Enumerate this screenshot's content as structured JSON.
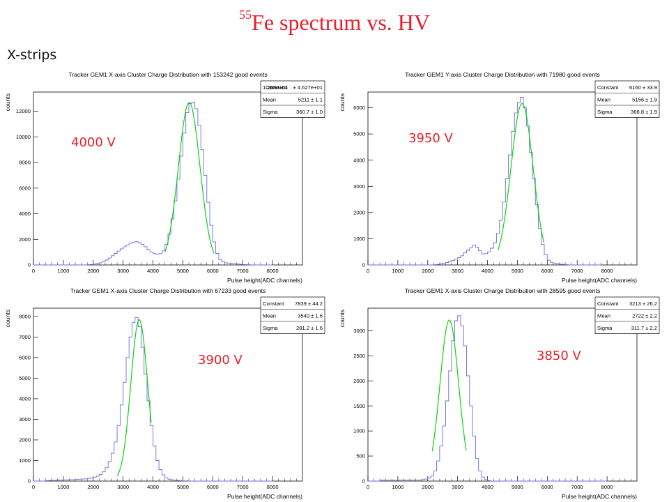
{
  "page": {
    "title_sup": "55",
    "title_main": "Fe spectrum vs. HV",
    "subtitle": "X-strips"
  },
  "colors": {
    "title": "#e8202a",
    "hv_label": "#e8202a",
    "histogram": "#6a6ae6",
    "fit": "#10d010",
    "axis": "#000000"
  },
  "chart_data": [
    {
      "type": "histogram",
      "title": "Tracker GEM1 X-axis Cluster Charge Distribution with 153242 good events",
      "xlabel": "Pulse height(ADC channels)",
      "ylabel": "counts",
      "xlim": [
        0,
        9000
      ],
      "ylim": [
        0,
        13500
      ],
      "xticks": [
        0,
        1000,
        2000,
        3000,
        4000,
        5000,
        6000,
        7000,
        8000
      ],
      "yticks": [
        0,
        2000,
        4000,
        6000,
        8000,
        10000,
        12000
      ],
      "hv_label": "4000 V",
      "stats": [
        {
          "name": "1.268e+04",
          "value": "± 4.627e+01"
        },
        {
          "name": "Mean",
          "value": "5211 ± 1.1"
        },
        {
          "name": "Sigma",
          "value": "360.7 ± 1.0"
        }
      ],
      "stats_overlay": "Constant",
      "bin_width": 100,
      "bin_start": 0,
      "counts": [
        0,
        0,
        0,
        0,
        0,
        0,
        0,
        0,
        0,
        0,
        0,
        0,
        0,
        0,
        0,
        0,
        0,
        0,
        20,
        40,
        70,
        110,
        170,
        260,
        380,
        540,
        720,
        900,
        1080,
        1250,
        1420,
        1560,
        1700,
        1780,
        1820,
        1740,
        1600,
        1420,
        1200,
        1020,
        890,
        840,
        880,
        1100,
        1600,
        2400,
        3600,
        5000,
        6700,
        8500,
        10300,
        11900,
        12600,
        12700,
        12200,
        10900,
        9000,
        7000,
        4900,
        3100,
        1800,
        900,
        420,
        240,
        170,
        130,
        110,
        90,
        70,
        50,
        30,
        20,
        10,
        0,
        0,
        0,
        0,
        0,
        0,
        0
      ],
      "fit": {
        "constant": 12680,
        "mean": 5211,
        "sigma": 360.7,
        "range": [
          4400,
          6050
        ]
      }
    },
    {
      "type": "histogram",
      "title": "Tracker GEM1 Y-axis Cluster Charge Distribution with 71980 good events",
      "xlabel": "Pulse height(ADC channels)",
      "ylabel": "counts",
      "xlim": [
        0,
        9000
      ],
      "ylim": [
        0,
        6600
      ],
      "xticks": [
        0,
        1000,
        2000,
        3000,
        4000,
        5000,
        6000,
        7000,
        8000
      ],
      "yticks": [
        0,
        1000,
        2000,
        3000,
        4000,
        5000,
        6000
      ],
      "hv_label": "3950 V",
      "stats": [
        {
          "name": "Constant",
          "value": "6160 ± 33.9"
        },
        {
          "name": "Mean",
          "value": "5156 ± 1.9"
        },
        {
          "name": "Sigma",
          "value": "368.8 ± 1.9"
        }
      ],
      "bin_width": 100,
      "bin_start": 0,
      "counts": [
        0,
        0,
        0,
        0,
        0,
        0,
        0,
        0,
        0,
        0,
        0,
        0,
        0,
        0,
        0,
        0,
        0,
        0,
        0,
        0,
        0,
        0,
        10,
        20,
        40,
        60,
        90,
        130,
        170,
        220,
        280,
        350,
        460,
        560,
        660,
        760,
        680,
        540,
        420,
        430,
        500,
        640,
        850,
        1200,
        1700,
        2400,
        3300,
        4200,
        5100,
        5800,
        6200,
        6400,
        6000,
        5300,
        4300,
        3300,
        2300,
        1400,
        780,
        400,
        180,
        100,
        60,
        40,
        30,
        20,
        10,
        0,
        0,
        0,
        0,
        0,
        0,
        0,
        0,
        0,
        0,
        0
      ],
      "fit": {
        "constant": 6160,
        "mean": 5156,
        "sigma": 368.8,
        "range": [
          4350,
          5900
        ]
      }
    },
    {
      "type": "histogram",
      "title": "Tracker GEM1 X-axis Cluster Charge Distribution with 67233 good events",
      "xlabel": "Pulse height(ADC channels)",
      "ylabel": "counts",
      "xlim": [
        0,
        9000
      ],
      "ylim": [
        0,
        8400
      ],
      "xticks": [
        0,
        1000,
        2000,
        3000,
        4000,
        5000,
        6000,
        7000,
        8000
      ],
      "yticks": [
        0,
        1000,
        2000,
        3000,
        4000,
        5000,
        6000,
        7000,
        8000
      ],
      "hv_label": "3900 V",
      "stats": [
        {
          "name": "Constant",
          "value": "7839 ± 44.2"
        },
        {
          "name": "Mean",
          "value": "3540 ± 1.6"
        },
        {
          "name": "Sigma",
          "value": "281.2 ± 1.6"
        }
      ],
      "bin_width": 100,
      "bin_start": 0,
      "counts": [
        0,
        0,
        0,
        0,
        20,
        30,
        40,
        40,
        50,
        50,
        60,
        60,
        70,
        70,
        80,
        90,
        100,
        110,
        130,
        150,
        190,
        240,
        320,
        450,
        650,
        950,
        1350,
        1900,
        2700,
        3700,
        4800,
        6000,
        7000,
        7700,
        7950,
        7500,
        6500,
        5200,
        3900,
        2700,
        1700,
        1000,
        560,
        300,
        160,
        90,
        60,
        40,
        30,
        20,
        10,
        10,
        0,
        0,
        0,
        0,
        0,
        0,
        0,
        0,
        0,
        0,
        0,
        0,
        0,
        0,
        0,
        0,
        0,
        0,
        0,
        0,
        0,
        0,
        0,
        0,
        0,
        0,
        0,
        0
      ],
      "fit": {
        "constant": 7839,
        "mean": 3540,
        "sigma": 281.2,
        "range": [
          2800,
          3950
        ]
      }
    },
    {
      "type": "histogram",
      "title": "Tracker GEM1 X-axis Cluster Charge Distribution with 28595 good events",
      "xlabel": "Pulse height(ADC channels)",
      "ylabel": "counts",
      "xlim": [
        0,
        9000
      ],
      "ylim": [
        0,
        3450
      ],
      "xticks": [
        0,
        1000,
        2000,
        3000,
        4000,
        5000,
        6000,
        7000,
        8000
      ],
      "yticks": [
        0,
        500,
        1000,
        1500,
        2000,
        2500,
        3000
      ],
      "hv_label": "3850 V",
      "stats": [
        {
          "name": "Constant",
          "value": "3213 ± 26.2"
        },
        {
          "name": "Mean",
          "value": "2722 ± 2.2"
        },
        {
          "name": "Sigma",
          "value": "311.7 ± 2.2"
        }
      ],
      "bin_width": 100,
      "bin_start": 0,
      "counts": [
        0,
        0,
        0,
        0,
        20,
        20,
        20,
        20,
        20,
        20,
        20,
        20,
        20,
        20,
        20,
        20,
        20,
        20,
        30,
        40,
        60,
        100,
        200,
        400,
        700,
        1100,
        1600,
        2200,
        2800,
        3200,
        3300,
        3100,
        2700,
        2100,
        1500,
        900,
        450,
        200,
        80,
        30,
        10,
        0,
        0,
        0,
        0,
        0,
        0,
        0,
        0,
        0,
        0,
        0,
        0,
        0,
        0,
        0,
        0,
        0,
        0,
        0,
        0,
        0,
        0,
        0,
        0,
        0,
        0,
        0,
        0,
        0,
        0,
        0,
        0,
        0,
        0,
        0,
        0,
        0,
        0,
        0
      ],
      "fit": {
        "constant": 3213,
        "mean": 2722,
        "sigma": 311.7,
        "range": [
          2150,
          3300
        ]
      }
    }
  ]
}
